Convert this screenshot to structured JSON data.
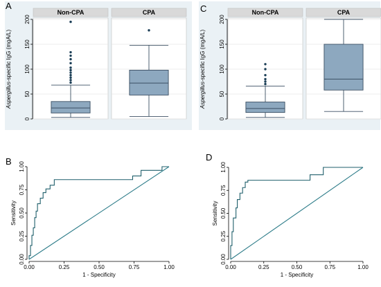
{
  "colors": {
    "box_fill": "#8da8bf",
    "box_stroke": "#3b4f63",
    "strip_fill": "#d9d9d9",
    "plot_bg": "#ffffff",
    "panel_bg": "#eaf1f5",
    "curve": "#1f5f6b",
    "diagonal": "#2d7c89",
    "outlier": "#1c3f57"
  },
  "chart_data": [
    {
      "panel_letter": "A",
      "type": "box",
      "ylabel_prefix": "Aspergillus",
      "ylabel_suffix": "-specific IgG (mgA/L)",
      "ylim": [
        0,
        200
      ],
      "yticks": [
        0,
        50,
        100,
        150,
        200
      ],
      "groups": [
        {
          "name": "Non-CPA",
          "min": 3,
          "q1": 12,
          "median": 22,
          "q3": 35,
          "max": 68,
          "outliers": [
            73,
            78,
            83,
            88,
            93,
            98,
            103,
            112,
            120,
            127,
            134,
            195
          ]
        },
        {
          "name": "CPA",
          "min": 5,
          "q1": 48,
          "median": 72,
          "q3": 98,
          "max": 148,
          "outliers": [
            178
          ]
        }
      ]
    },
    {
      "panel_letter": "C",
      "type": "box",
      "ylabel_prefix": "Aspergillus",
      "ylabel_suffix": "-specific IgG (mgA/L)",
      "ylim": [
        0,
        200
      ],
      "yticks": [
        0,
        50,
        100,
        150,
        200
      ],
      "groups": [
        {
          "name": "Non-CPA",
          "min": 3,
          "q1": 13,
          "median": 21,
          "q3": 34,
          "max": 66,
          "outliers": [
            70,
            75,
            80,
            88,
            100,
            110
          ]
        },
        {
          "name": "CPA",
          "min": 15,
          "q1": 58,
          "median": 80,
          "q3": 150,
          "max": 200,
          "outliers": []
        }
      ]
    },
    {
      "panel_letter": "B",
      "type": "line",
      "xlabel": "1 - Specificity",
      "ylabel": "Sensitivity",
      "xlim": [
        0,
        1
      ],
      "ylim": [
        0,
        1
      ],
      "xticks": [
        "0.00",
        "0.25",
        "0.50",
        "0.75",
        "1.00"
      ],
      "yticks": [
        "0.00",
        "0.25",
        "0.50",
        "0.75",
        "1.00"
      ],
      "series": [
        {
          "points": [
            [
              0,
              0
            ],
            [
              0,
              0.04
            ],
            [
              0.01,
              0.04
            ],
            [
              0.01,
              0.15
            ],
            [
              0.02,
              0.15
            ],
            [
              0.02,
              0.26
            ],
            [
              0.03,
              0.26
            ],
            [
              0.03,
              0.34
            ],
            [
              0.04,
              0.34
            ],
            [
              0.04,
              0.45
            ],
            [
              0.05,
              0.45
            ],
            [
              0.05,
              0.52
            ],
            [
              0.06,
              0.52
            ],
            [
              0.06,
              0.6
            ],
            [
              0.08,
              0.6
            ],
            [
              0.08,
              0.66
            ],
            [
              0.1,
              0.66
            ],
            [
              0.1,
              0.72
            ],
            [
              0.12,
              0.72
            ],
            [
              0.12,
              0.76
            ],
            [
              0.15,
              0.76
            ],
            [
              0.15,
              0.8
            ],
            [
              0.18,
              0.8
            ],
            [
              0.18,
              0.86
            ],
            [
              0.74,
              0.86
            ],
            [
              0.74,
              0.9
            ],
            [
              0.8,
              0.9
            ],
            [
              0.8,
              0.96
            ],
            [
              0.95,
              0.96
            ],
            [
              0.95,
              1.0
            ],
            [
              1.0,
              1.0
            ]
          ]
        },
        {
          "points": [
            [
              0,
              0
            ],
            [
              1,
              1
            ]
          ]
        }
      ]
    },
    {
      "panel_letter": "D",
      "type": "line",
      "xlabel": "1 - Specificity",
      "ylabel": "Sensitivity",
      "xlim": [
        0,
        1
      ],
      "ylim": [
        0,
        1
      ],
      "xticks": [
        "0.00",
        "0.25",
        "0.50",
        "0.75",
        "1.00"
      ],
      "yticks": [
        "0.00",
        "0.25",
        "0.50",
        "0.75",
        "1.00"
      ],
      "series": [
        {
          "points": [
            [
              0,
              0
            ],
            [
              0,
              0.15
            ],
            [
              0.01,
              0.15
            ],
            [
              0.01,
              0.3
            ],
            [
              0.02,
              0.3
            ],
            [
              0.02,
              0.45
            ],
            [
              0.04,
              0.45
            ],
            [
              0.04,
              0.56
            ],
            [
              0.05,
              0.56
            ],
            [
              0.05,
              0.65
            ],
            [
              0.07,
              0.65
            ],
            [
              0.07,
              0.72
            ],
            [
              0.09,
              0.72
            ],
            [
              0.09,
              0.78
            ],
            [
              0.11,
              0.78
            ],
            [
              0.11,
              0.84
            ],
            [
              0.13,
              0.84
            ],
            [
              0.13,
              0.86
            ],
            [
              0.6,
              0.86
            ],
            [
              0.6,
              0.92
            ],
            [
              0.7,
              0.92
            ],
            [
              0.7,
              1.0
            ],
            [
              1.0,
              1.0
            ]
          ]
        },
        {
          "points": [
            [
              0,
              0
            ],
            [
              1,
              1
            ]
          ]
        }
      ]
    }
  ]
}
